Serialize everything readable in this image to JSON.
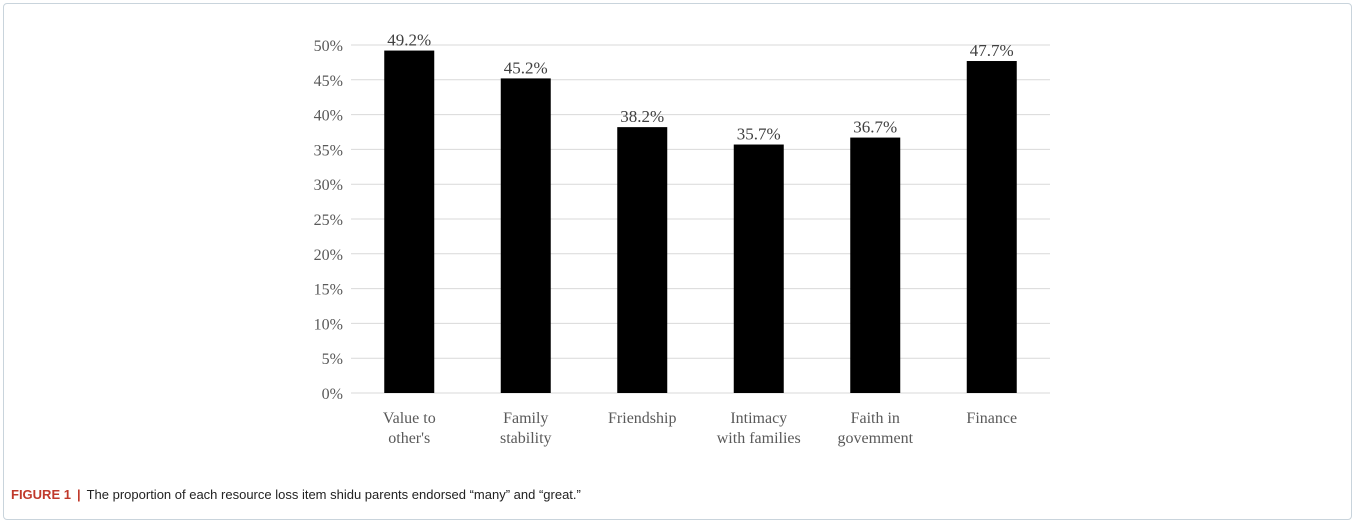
{
  "chart_data": {
    "type": "bar",
    "categories": [
      [
        "Value to",
        "other's"
      ],
      [
        "Family",
        "stability"
      ],
      [
        "Friendship"
      ],
      [
        "Intimacy",
        "with families"
      ],
      [
        "Faith in",
        "govemment"
      ],
      [
        "Finance"
      ]
    ],
    "values": [
      49.2,
      45.2,
      38.2,
      35.7,
      36.7,
      47.7
    ],
    "data_labels": [
      "49.2%",
      "45.2%",
      "38.2%",
      "35.7%",
      "36.7%",
      "47.7%"
    ],
    "yticks": [
      "0%",
      "5%",
      "10%",
      "15%",
      "20%",
      "25%",
      "30%",
      "35%",
      "40%",
      "45%",
      "50%"
    ],
    "ylim": [
      0,
      50
    ],
    "grid": true,
    "bar_color": "#000000",
    "grid_color": "#d9d9d9"
  },
  "caption": {
    "label": "FIGURE 1",
    "separator": "|",
    "text": "The proportion of each resource loss item shidu parents endorsed “many” and “great.”",
    "label_color": "#c0392b"
  }
}
